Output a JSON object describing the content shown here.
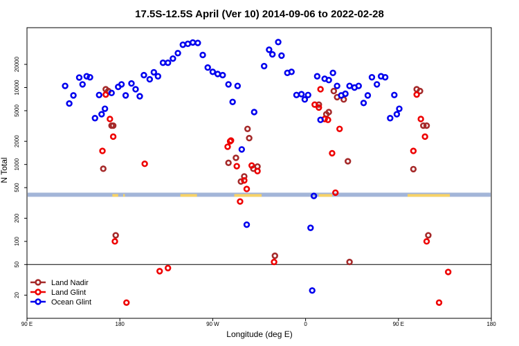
{
  "chart_data": {
    "type": "scatter",
    "title": "17.5S-12.5S April (Ver 10)   2014-09-06 to 2022-02-28",
    "xlabel": "Longitude (deg E)",
    "ylabel": "N Total",
    "x_ticks": [
      {
        "label": "90 E"
      },
      {
        "label": "180"
      },
      {
        "label": "90 W"
      },
      {
        "label": "0"
      },
      {
        "label": "90 E"
      },
      {
        "label": "180"
      }
    ],
    "y_scale": "log",
    "ylim": [
      10,
      60000
    ],
    "y_ticks": [
      20,
      50,
      100,
      200,
      500,
      1000,
      2000,
      5000,
      10000,
      20000
    ],
    "reference_line_y": 50,
    "land_band": {
      "ocean_color": "#a3b5d8",
      "land_color": "#f7d266",
      "land_segments": [
        [
          103,
          110
        ],
        [
          116,
          118
        ],
        [
          185,
          205
        ],
        [
          250,
          283
        ],
        [
          352,
          368
        ],
        [
          459,
          510
        ]
      ]
    },
    "series": [
      {
        "name": "Land Nadir",
        "color": "#a52a2a",
        "points": [
          [
            92,
            880
          ],
          [
            95,
            9500
          ],
          [
            98,
            9000
          ],
          [
            102,
            3200
          ],
          [
            104,
            3200
          ],
          [
            107,
            120
          ],
          [
            243,
            1050
          ],
          [
            252,
            1220
          ],
          [
            258,
            600
          ],
          [
            262,
            700
          ],
          [
            266,
            2900
          ],
          [
            268,
            2200
          ],
          [
            273,
            880
          ],
          [
            278,
            940
          ],
          [
            299,
            65
          ],
          [
            352,
            6000
          ],
          [
            361,
            4500
          ],
          [
            364,
            4800
          ],
          [
            370,
            9000
          ],
          [
            374,
            7500
          ],
          [
            382,
            7000
          ],
          [
            387,
            1100
          ],
          [
            389,
            54
          ],
          [
            466,
            870
          ],
          [
            470,
            9500
          ],
          [
            474,
            9000
          ],
          [
            478,
            3200
          ],
          [
            482,
            3200
          ],
          [
            484,
            120
          ]
        ]
      },
      {
        "name": "Land Glint",
        "color": "#ee0000",
        "points": [
          [
            91,
            1500
          ],
          [
            95,
            8100
          ],
          [
            100,
            3900
          ],
          [
            104,
            2300
          ],
          [
            106,
            100
          ],
          [
            120,
            16
          ],
          [
            142,
            1020
          ],
          [
            160,
            41
          ],
          [
            170,
            45
          ],
          [
            242,
            1700
          ],
          [
            245,
            2000
          ],
          [
            246,
            2050
          ],
          [
            253,
            950
          ],
          [
            257,
            330
          ],
          [
            262,
            620
          ],
          [
            265,
            480
          ],
          [
            271,
            970
          ],
          [
            278,
            820
          ],
          [
            298,
            54
          ],
          [
            347,
            6000
          ],
          [
            352,
            5500
          ],
          [
            354,
            9500
          ],
          [
            359,
            3900
          ],
          [
            363,
            3800
          ],
          [
            368,
            1400
          ],
          [
            372,
            430
          ],
          [
            377,
            2900
          ],
          [
            466,
            1500
          ],
          [
            470,
            8100
          ],
          [
            475,
            3900
          ],
          [
            480,
            2300
          ],
          [
            482,
            100
          ],
          [
            497,
            16
          ],
          [
            508,
            40
          ]
        ]
      },
      {
        "name": "Ocean Glint",
        "color": "#0000ee",
        "points": [
          [
            46,
            10500
          ],
          [
            51,
            6200
          ],
          [
            56,
            7900
          ],
          [
            63,
            13500
          ],
          [
            67,
            11000
          ],
          [
            72,
            14000
          ],
          [
            76,
            13600
          ],
          [
            82,
            4000
          ],
          [
            87,
            8000
          ],
          [
            90,
            4500
          ],
          [
            94,
            5300
          ],
          [
            102,
            8500
          ],
          [
            110,
            10200
          ],
          [
            114,
            11000
          ],
          [
            119,
            7900
          ],
          [
            126,
            11300
          ],
          [
            131,
            9500
          ],
          [
            136,
            7700
          ],
          [
            141,
            14500
          ],
          [
            148,
            12800
          ],
          [
            153,
            15800
          ],
          [
            158,
            14000
          ],
          [
            164,
            21000
          ],
          [
            170,
            21000
          ],
          [
            176,
            23800
          ],
          [
            182,
            28000
          ],
          [
            188,
            36000
          ],
          [
            194,
            37000
          ],
          [
            200,
            38500
          ],
          [
            206,
            38000
          ],
          [
            212,
            26500
          ],
          [
            218,
            18200
          ],
          [
            224,
            16000
          ],
          [
            230,
            15000
          ],
          [
            236,
            14500
          ],
          [
            243,
            11000
          ],
          [
            248,
            6500
          ],
          [
            254,
            10500
          ],
          [
            259,
            1570
          ],
          [
            265,
            165
          ],
          [
            274,
            4800
          ],
          [
            286,
            19000
          ],
          [
            292,
            31000
          ],
          [
            296,
            27000
          ],
          [
            303,
            39000
          ],
          [
            307,
            26000
          ],
          [
            314,
            15500
          ],
          [
            319,
            16000
          ],
          [
            325,
            8000
          ],
          [
            331,
            8200
          ],
          [
            335,
            7000
          ],
          [
            339,
            8000
          ],
          [
            342,
            150
          ],
          [
            344,
            23
          ],
          [
            346,
            390
          ],
          [
            350,
            14000
          ],
          [
            354,
            3800
          ],
          [
            359,
            13000
          ],
          [
            364,
            12500
          ],
          [
            369,
            15500
          ],
          [
            374,
            10500
          ],
          [
            379,
            7900
          ],
          [
            384,
            8300
          ],
          [
            389,
            10500
          ],
          [
            395,
            10000
          ],
          [
            400,
            10500
          ],
          [
            406,
            6300
          ],
          [
            411,
            7900
          ],
          [
            416,
            13600
          ],
          [
            422,
            11000
          ],
          [
            427,
            14000
          ],
          [
            432,
            13600
          ],
          [
            438,
            4000
          ],
          [
            443,
            8000
          ],
          [
            446,
            4500
          ],
          [
            449,
            5300
          ]
        ]
      }
    ]
  }
}
